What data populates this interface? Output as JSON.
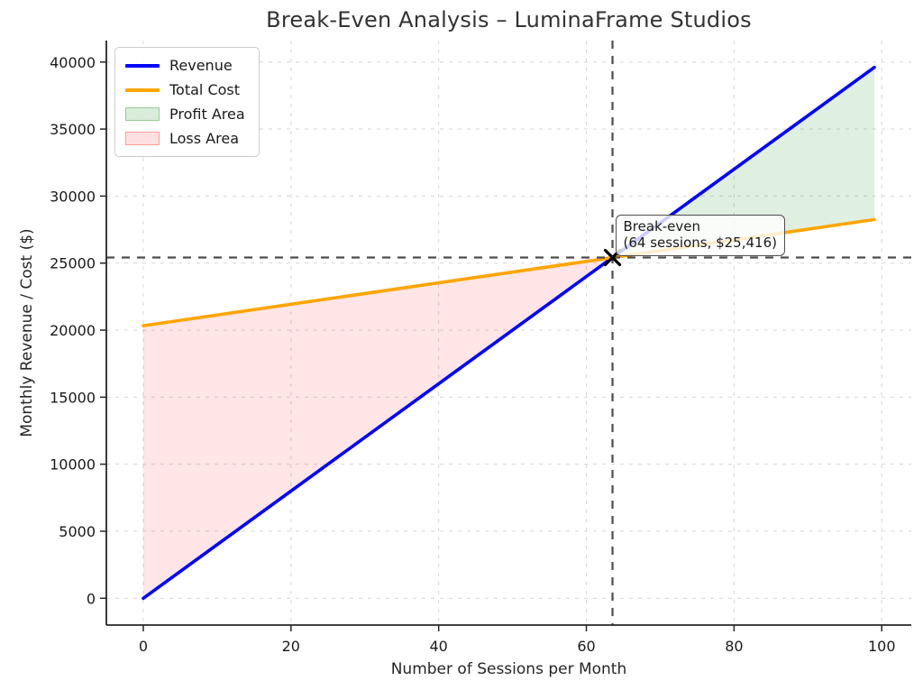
{
  "chart_data": {
    "type": "line",
    "title": "Break-Even Analysis – LuminaFrame Studios",
    "xlabel": "Number of Sessions per Month",
    "ylabel": "Monthly Revenue / Cost ($)",
    "xlim": [
      -5,
      104
    ],
    "ylim": [
      -2000,
      41600
    ],
    "xticks": [
      0,
      20,
      40,
      60,
      80,
      100
    ],
    "yticks": [
      0,
      5000,
      10000,
      15000,
      20000,
      25000,
      30000,
      35000,
      40000
    ],
    "grid": {
      "visible": true,
      "style": "dashed",
      "color": "#d9d9d9"
    },
    "series": [
      {
        "name": "Revenue",
        "color": "#0000ff",
        "points": [
          [
            0,
            0
          ],
          [
            99,
            39600
          ]
        ]
      },
      {
        "name": "Total Cost",
        "color": "#ffa500",
        "points": [
          [
            0,
            20333
          ],
          [
            99,
            28253
          ]
        ]
      }
    ],
    "areas": [
      {
        "name": "Profit Area",
        "color": "#008000",
        "opacity": 0.12,
        "between": [
          "Revenue",
          "Total Cost"
        ],
        "x_from": 63.54,
        "x_to": 99
      },
      {
        "name": "Loss Area",
        "color": "#ff0000",
        "opacity": 0.1,
        "between": [
          "Total Cost",
          "Revenue"
        ],
        "x_from": 0,
        "x_to": 63.54
      }
    ],
    "break_even": {
      "sessions": 63.54,
      "value": 25416,
      "marker": "x",
      "marker_color": "#000000",
      "crosshair_color": "#4d4d4d",
      "annotation_line1": "Break-even",
      "annotation_line2": "(64 sessions, $25,416)"
    },
    "legend": {
      "position": "upper-left",
      "entries": [
        {
          "label": "Revenue",
          "type": "line",
          "color": "#0000ff"
        },
        {
          "label": "Total Cost",
          "type": "line",
          "color": "#ffa500"
        },
        {
          "label": "Profit Area",
          "type": "patch",
          "color": "#008000",
          "opacity": 0.15
        },
        {
          "label": "Loss Area",
          "type": "patch",
          "color": "#ff0000",
          "opacity": 0.12
        }
      ]
    }
  }
}
